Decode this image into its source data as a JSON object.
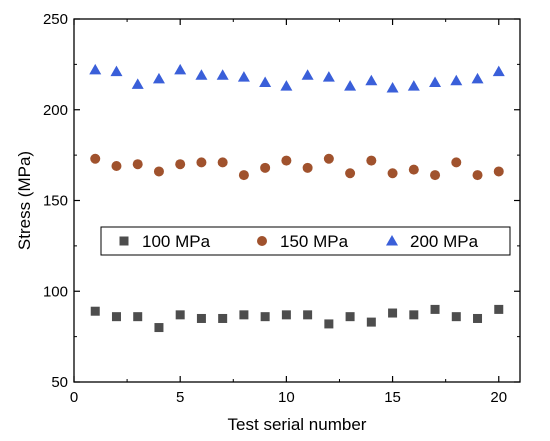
{
  "chart_data": {
    "type": "scatter",
    "title": "",
    "xlabel": "Test serial number",
    "ylabel": "Stress (MPa)",
    "xlim": [
      0,
      21
    ],
    "ylim": [
      50,
      250
    ],
    "x_ticks": [
      0,
      5,
      10,
      15,
      20
    ],
    "y_ticks": [
      50,
      100,
      150,
      200,
      250
    ],
    "x_tick_labels": [
      "0",
      "5",
      "10",
      "15",
      "20"
    ],
    "y_tick_labels": [
      "50",
      "100",
      "150",
      "200",
      "250"
    ],
    "grid": false,
    "legend_position": "center",
    "x": [
      1,
      2,
      3,
      4,
      5,
      6,
      7,
      8,
      9,
      10,
      11,
      12,
      13,
      14,
      15,
      16,
      17,
      18,
      19,
      20
    ],
    "series": [
      {
        "name": "100 MPa",
        "marker": "square",
        "color": "#4d4d4d",
        "values": [
          89,
          86,
          86,
          80,
          87,
          85,
          85,
          87,
          86,
          87,
          87,
          82,
          86,
          83,
          88,
          87,
          90,
          86,
          85,
          90
        ]
      },
      {
        "name": "150 MPa",
        "marker": "circle",
        "color": "#a0522d",
        "values": [
          173,
          169,
          170,
          166,
          170,
          171,
          171,
          164,
          168,
          172,
          168,
          173,
          165,
          172,
          165,
          167,
          164,
          171,
          164,
          166
        ]
      },
      {
        "name": "200 MPa",
        "marker": "triangle",
        "color": "#3a5fd9",
        "values": [
          222,
          221,
          214,
          217,
          222,
          219,
          219,
          218,
          215,
          213,
          219,
          218,
          213,
          216,
          212,
          213,
          215,
          216,
          217,
          221
        ]
      }
    ]
  }
}
